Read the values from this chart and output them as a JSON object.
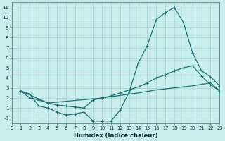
{
  "background_color": "#c8eded",
  "grid_color": "#a8d8d8",
  "line_color": "#1a7070",
  "xlabel": "Humidex (Indice chaleur)",
  "xlim": [
    0,
    23
  ],
  "ylim": [
    -0.5,
    11.5
  ],
  "ytick_labels": [
    "-0",
    "1",
    "2",
    "3",
    "4",
    "5",
    "6",
    "7",
    "8",
    "9",
    "10",
    "11"
  ],
  "ytick_vals": [
    0,
    1,
    2,
    3,
    4,
    5,
    6,
    7,
    8,
    9,
    10,
    11
  ],
  "xtick_vals": [
    0,
    1,
    2,
    3,
    4,
    5,
    6,
    7,
    8,
    9,
    10,
    11,
    12,
    13,
    14,
    15,
    16,
    17,
    18,
    19,
    20,
    21,
    22,
    23
  ],
  "line1_x": [
    1,
    2,
    3,
    4,
    5,
    6,
    7,
    8,
    9,
    10,
    11,
    12,
    13,
    14,
    15,
    16,
    17,
    18,
    19,
    20,
    21,
    22,
    23
  ],
  "line1_y": [
    2.7,
    2.4,
    1.2,
    1.0,
    0.6,
    0.3,
    0.4,
    0.6,
    -0.3,
    -0.3,
    -0.3,
    0.8,
    2.6,
    5.5,
    7.2,
    9.8,
    10.5,
    11.0,
    9.5,
    6.5,
    4.7,
    4.1,
    3.2
  ],
  "line2_x": [
    1,
    2,
    3,
    4,
    5,
    6,
    7,
    8,
    9,
    10,
    11,
    12,
    13,
    14,
    15,
    16,
    17,
    18,
    19,
    20,
    21,
    22,
    23
  ],
  "line2_y": [
    2.7,
    2.0,
    1.8,
    1.5,
    1.3,
    1.2,
    1.1,
    1.0,
    1.8,
    2.0,
    2.2,
    2.5,
    2.8,
    3.1,
    3.5,
    4.0,
    4.3,
    4.7,
    5.0,
    5.2,
    4.2,
    3.3,
    2.7
  ],
  "line3_x": [
    1,
    4,
    10,
    14,
    16,
    18,
    20,
    22,
    23
  ],
  "line3_y": [
    2.7,
    1.5,
    2.0,
    2.5,
    2.8,
    3.0,
    3.2,
    3.5,
    2.7
  ]
}
